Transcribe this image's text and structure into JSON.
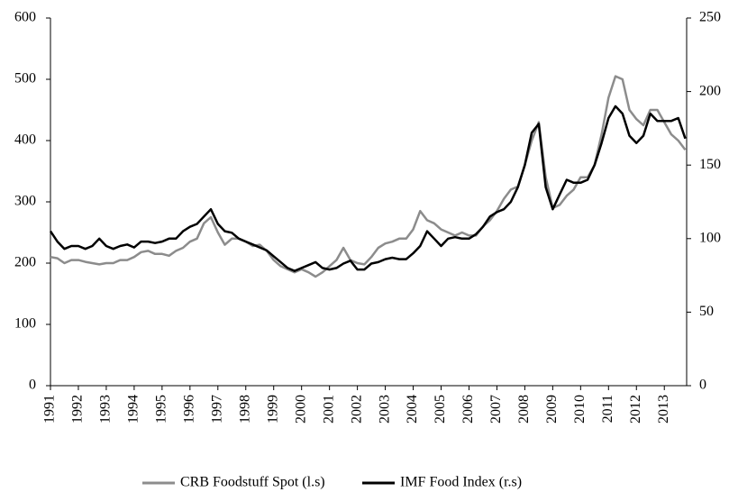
{
  "chart_data": {
    "type": "line",
    "x": [
      1991,
      1991.25,
      1991.5,
      1991.75,
      1992,
      1992.25,
      1992.5,
      1992.75,
      1993,
      1993.25,
      1993.5,
      1993.75,
      1994,
      1994.25,
      1994.5,
      1994.75,
      1995,
      1995.25,
      1995.5,
      1995.75,
      1996,
      1996.25,
      1996.5,
      1996.75,
      1997,
      1997.25,
      1997.5,
      1997.75,
      1998,
      1998.25,
      1998.5,
      1998.75,
      1999,
      1999.25,
      1999.5,
      1999.75,
      2000,
      2000.25,
      2000.5,
      2000.75,
      2001,
      2001.25,
      2001.5,
      2001.75,
      2002,
      2002.25,
      2002.5,
      2002.75,
      2003,
      2003.25,
      2003.5,
      2003.75,
      2004,
      2004.25,
      2004.5,
      2004.75,
      2005,
      2005.25,
      2005.5,
      2005.75,
      2006,
      2006.25,
      2006.5,
      2006.75,
      2007,
      2007.25,
      2007.5,
      2007.75,
      2008,
      2008.25,
      2008.5,
      2008.75,
      2009,
      2009.25,
      2009.5,
      2009.75,
      2010,
      2010.25,
      2010.5,
      2010.75,
      2011,
      2011.25,
      2011.5,
      2011.75,
      2012,
      2012.25,
      2012.5,
      2012.75,
      2013,
      2013.25,
      2013.5,
      2013.75
    ],
    "series": [
      {
        "name": "CRB Foodstuff Spot (l.s)",
        "color": "#8c8c8c",
        "values": [
          210,
          208,
          200,
          205,
          205,
          202,
          200,
          198,
          200,
          200,
          205,
          205,
          210,
          218,
          220,
          215,
          215,
          212,
          220,
          225,
          235,
          240,
          265,
          275,
          250,
          230,
          240,
          240,
          235,
          228,
          230,
          220,
          205,
          195,
          190,
          185,
          190,
          185,
          178,
          185,
          195,
          205,
          225,
          205,
          200,
          198,
          210,
          225,
          232,
          235,
          240,
          240,
          255,
          285,
          270,
          265,
          255,
          250,
          245,
          250,
          245,
          245,
          260,
          270,
          285,
          305,
          320,
          325,
          360,
          400,
          430,
          340,
          290,
          295,
          310,
          320,
          340,
          340,
          360,
          410,
          470,
          505,
          500,
          450,
          435,
          425,
          450,
          450,
          430,
          410,
          400,
          385
        ]
      },
      {
        "name": "IMF Food Index (r.s)",
        "color": "#000000",
        "axis": "y2",
        "values": [
          105,
          98,
          93,
          95,
          95,
          93,
          95,
          100,
          95,
          93,
          95,
          96,
          94,
          98,
          98,
          97,
          98,
          100,
          100,
          105,
          108,
          110,
          115,
          120,
          110,
          105,
          104,
          100,
          98,
          96,
          94,
          92,
          88,
          84,
          80,
          78,
          80,
          82,
          84,
          80,
          79,
          80,
          83,
          85,
          79,
          79,
          83,
          84,
          86,
          87,
          86,
          86,
          90,
          95,
          105,
          100,
          95,
          100,
          101,
          100,
          100,
          103,
          108,
          115,
          118,
          120,
          125,
          135,
          150,
          172,
          178,
          135,
          120,
          130,
          140,
          138,
          138,
          140,
          150,
          165,
          182,
          190,
          185,
          170,
          165,
          170,
          185,
          180,
          180,
          180,
          182,
          168
        ]
      }
    ],
    "xlim": [
      1991,
      2013.8
    ],
    "xticks": [
      1991,
      1992,
      1993,
      1994,
      1995,
      1996,
      1997,
      1998,
      1999,
      2000,
      2001,
      2002,
      2003,
      2004,
      2005,
      2006,
      2007,
      2008,
      2009,
      2010,
      2011,
      2012,
      2013
    ],
    "ylim": [
      0,
      600
    ],
    "yticks": [
      0,
      100,
      200,
      300,
      400,
      500,
      600
    ],
    "y2lim": [
      0,
      250
    ],
    "y2ticks": [
      0,
      50,
      100,
      150,
      200,
      250
    ],
    "legend": "bottom"
  }
}
